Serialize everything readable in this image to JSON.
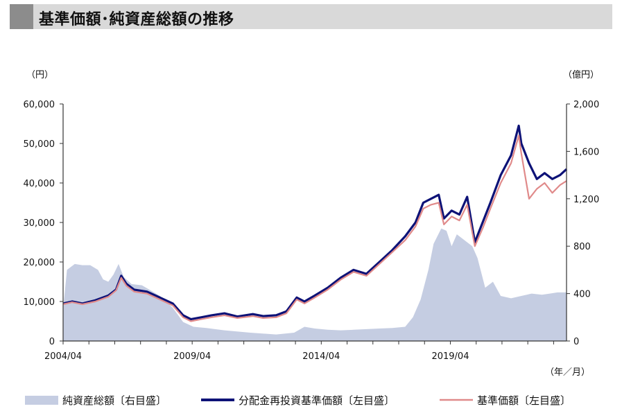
{
  "page": {
    "title": "基準価額･純資産総額の推移"
  },
  "colors": {
    "area": "#c5cde2",
    "reinvest": "#0d1277",
    "nav": "#e08a8a",
    "axis": "#333333"
  },
  "chart_data": {
    "type": "line",
    "left_unit": "（円）",
    "right_unit": "（億円）",
    "x_unit": "（年／月）",
    "x_ticks": [
      "2004/04",
      "2009/04",
      "2014/04",
      "2019/04"
    ],
    "x_range": [
      2004.25,
      2023.75
    ],
    "y_left": {
      "range": [
        0,
        60000
      ],
      "ticks": [
        "0",
        "10,000",
        "20,000",
        "30,000",
        "40,000",
        "50,000",
        "60,000"
      ]
    },
    "y_right": {
      "range": [
        0,
        2000
      ],
      "ticks": [
        "0",
        "400",
        "800",
        "1,200",
        "1,600",
        "2,000"
      ]
    },
    "series": [
      {
        "name": "純資産総額〔右目盛〕",
        "axis": "right",
        "kind": "area",
        "points": [
          [
            2004.25,
            270
          ],
          [
            2004.4,
            600
          ],
          [
            2004.7,
            650
          ],
          [
            2005.0,
            640
          ],
          [
            2005.3,
            640
          ],
          [
            2005.6,
            600
          ],
          [
            2005.8,
            520
          ],
          [
            2006.0,
            500
          ],
          [
            2006.2,
            560
          ],
          [
            2006.4,
            650
          ],
          [
            2006.6,
            540
          ],
          [
            2006.9,
            480
          ],
          [
            2007.3,
            470
          ],
          [
            2007.7,
            420
          ],
          [
            2008.0,
            380
          ],
          [
            2008.5,
            280
          ],
          [
            2008.9,
            160
          ],
          [
            2009.3,
            120
          ],
          [
            2009.8,
            110
          ],
          [
            2010.5,
            90
          ],
          [
            2011.5,
            70
          ],
          [
            2012.5,
            55
          ],
          [
            2013.2,
            70
          ],
          [
            2013.6,
            120
          ],
          [
            2014.0,
            105
          ],
          [
            2014.5,
            95
          ],
          [
            2015.0,
            90
          ],
          [
            2015.5,
            95
          ],
          [
            2016.0,
            100
          ],
          [
            2016.5,
            105
          ],
          [
            2017.0,
            110
          ],
          [
            2017.5,
            120
          ],
          [
            2017.8,
            200
          ],
          [
            2018.1,
            350
          ],
          [
            2018.4,
            600
          ],
          [
            2018.6,
            820
          ],
          [
            2018.9,
            950
          ],
          [
            2019.1,
            930
          ],
          [
            2019.3,
            800
          ],
          [
            2019.5,
            900
          ],
          [
            2019.8,
            850
          ],
          [
            2020.1,
            800
          ],
          [
            2020.3,
            700
          ],
          [
            2020.6,
            450
          ],
          [
            2020.9,
            500
          ],
          [
            2021.2,
            380
          ],
          [
            2021.6,
            360
          ],
          [
            2022.0,
            380
          ],
          [
            2022.4,
            400
          ],
          [
            2022.8,
            390
          ],
          [
            2023.1,
            400
          ],
          [
            2023.4,
            410
          ],
          [
            2023.75,
            410
          ]
        ]
      },
      {
        "name": "分配金再投資基準価額〔左目盛〕",
        "axis": "left",
        "kind": "line",
        "points": [
          [
            2004.25,
            9500
          ],
          [
            2004.6,
            10000
          ],
          [
            2005.0,
            9500
          ],
          [
            2005.5,
            10300
          ],
          [
            2006.0,
            11500
          ],
          [
            2006.3,
            13000
          ],
          [
            2006.5,
            16500
          ],
          [
            2006.7,
            14500
          ],
          [
            2007.0,
            13000
          ],
          [
            2007.5,
            12500
          ],
          [
            2008.0,
            11000
          ],
          [
            2008.5,
            9500
          ],
          [
            2008.9,
            6500
          ],
          [
            2009.2,
            5500
          ],
          [
            2009.6,
            6000
          ],
          [
            2010.0,
            6500
          ],
          [
            2010.5,
            7000
          ],
          [
            2011.0,
            6200
          ],
          [
            2011.6,
            6800
          ],
          [
            2012.0,
            6300
          ],
          [
            2012.5,
            6500
          ],
          [
            2012.9,
            7500
          ],
          [
            2013.3,
            11000
          ],
          [
            2013.6,
            10000
          ],
          [
            2014.0,
            11500
          ],
          [
            2014.5,
            13500
          ],
          [
            2015.0,
            16000
          ],
          [
            2015.5,
            18000
          ],
          [
            2016.0,
            17000
          ],
          [
            2016.5,
            20000
          ],
          [
            2017.0,
            23000
          ],
          [
            2017.5,
            26500
          ],
          [
            2017.9,
            30000
          ],
          [
            2018.2,
            35000
          ],
          [
            2018.5,
            36000
          ],
          [
            2018.8,
            37000
          ],
          [
            2019.0,
            31000
          ],
          [
            2019.3,
            33000
          ],
          [
            2019.6,
            32000
          ],
          [
            2019.9,
            36500
          ],
          [
            2020.2,
            25000
          ],
          [
            2020.5,
            30000
          ],
          [
            2020.8,
            35000
          ],
          [
            2021.2,
            42000
          ],
          [
            2021.6,
            47000
          ],
          [
            2021.9,
            54500
          ],
          [
            2022.0,
            50000
          ],
          [
            2022.3,
            45000
          ],
          [
            2022.6,
            41000
          ],
          [
            2022.9,
            42500
          ],
          [
            2023.2,
            41000
          ],
          [
            2023.5,
            42000
          ],
          [
            2023.75,
            43500
          ]
        ]
      },
      {
        "name": "基準価額〔左目盛〕",
        "axis": "left",
        "kind": "line",
        "points": [
          [
            2004.25,
            9300
          ],
          [
            2004.6,
            9800
          ],
          [
            2005.0,
            9300
          ],
          [
            2005.5,
            10000
          ],
          [
            2006.0,
            11200
          ],
          [
            2006.3,
            12800
          ],
          [
            2006.5,
            16000
          ],
          [
            2006.7,
            14000
          ],
          [
            2007.0,
            12500
          ],
          [
            2007.5,
            12000
          ],
          [
            2008.0,
            10500
          ],
          [
            2008.5,
            9000
          ],
          [
            2008.9,
            6000
          ],
          [
            2009.2,
            5000
          ],
          [
            2009.6,
            5500
          ],
          [
            2010.0,
            6000
          ],
          [
            2010.5,
            6500
          ],
          [
            2011.0,
            5800
          ],
          [
            2011.6,
            6300
          ],
          [
            2012.0,
            5800
          ],
          [
            2012.5,
            6000
          ],
          [
            2012.9,
            7000
          ],
          [
            2013.3,
            10500
          ],
          [
            2013.6,
            9500
          ],
          [
            2014.0,
            11000
          ],
          [
            2014.5,
            13000
          ],
          [
            2015.0,
            15500
          ],
          [
            2015.5,
            17500
          ],
          [
            2016.0,
            16500
          ],
          [
            2016.5,
            19500
          ],
          [
            2017.0,
            22500
          ],
          [
            2017.5,
            25500
          ],
          [
            2017.9,
            29000
          ],
          [
            2018.2,
            33500
          ],
          [
            2018.5,
            34500
          ],
          [
            2018.8,
            35000
          ],
          [
            2019.0,
            29500
          ],
          [
            2019.3,
            31500
          ],
          [
            2019.6,
            30500
          ],
          [
            2019.9,
            34500
          ],
          [
            2020.2,
            24000
          ],
          [
            2020.5,
            28500
          ],
          [
            2020.8,
            33500
          ],
          [
            2021.2,
            40000
          ],
          [
            2021.6,
            45000
          ],
          [
            2021.9,
            52000
          ],
          [
            2022.0,
            47500
          ],
          [
            2022.3,
            36000
          ],
          [
            2022.6,
            38500
          ],
          [
            2022.9,
            40000
          ],
          [
            2023.2,
            37500
          ],
          [
            2023.5,
            39500
          ],
          [
            2023.75,
            40500
          ]
        ]
      }
    ],
    "legend_position": "bottom"
  }
}
